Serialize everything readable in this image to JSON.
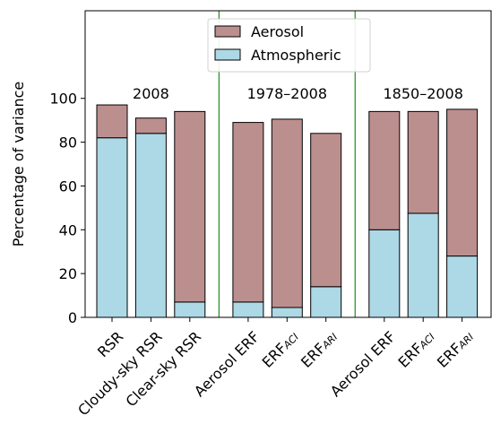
{
  "chart_data": {
    "type": "stacked-bar",
    "y_label": "Percentage of variance",
    "categories": [
      "RSR",
      "Cloudy-sky RSR",
      "Clear-sky RSR",
      "Aerosol ERF",
      "ERF",
      "ERF",
      "Aerosol ERF",
      "ERF",
      "ERF"
    ],
    "category_subscripts": [
      null,
      null,
      null,
      null,
      "ACI",
      "ARI",
      null,
      "ACI",
      "ARI"
    ],
    "series": [
      {
        "name": "Atmospheric",
        "color": "#add8e6",
        "values": [
          82,
          84,
          7,
          7,
          4.5,
          14,
          40,
          47.5,
          28
        ]
      },
      {
        "name": "Aerosol",
        "color": "#bc8f8f",
        "values": [
          15,
          7,
          87,
          82,
          86,
          70,
          54,
          46.5,
          67
        ]
      }
    ],
    "annotations": [
      "2008",
      "1978–2008",
      "1850–2008"
    ],
    "ylim": [
      0,
      140
    ],
    "yticks": [
      0,
      20,
      40,
      60,
      80,
      100
    ]
  }
}
